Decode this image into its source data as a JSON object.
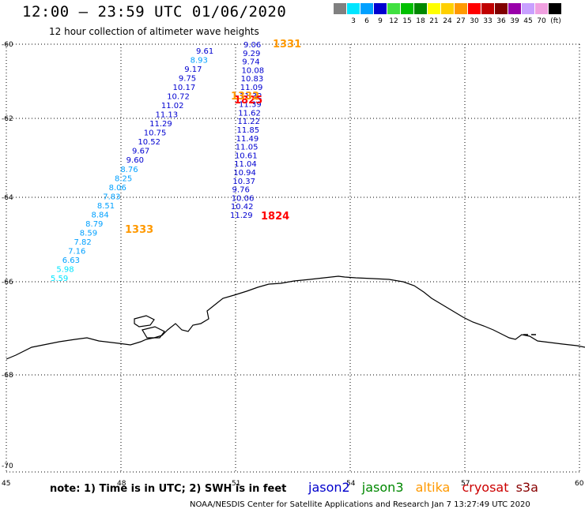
{
  "header": {
    "title": "12:00 – 23:59 UTC 01/06/2020",
    "subtitle": "12 hour collection of altimeter wave heights"
  },
  "color_scale": {
    "labels": [
      "3",
      "6",
      "9",
      "12",
      "15",
      "18",
      "21",
      "24",
      "27",
      "30",
      "33",
      "36",
      "39",
      "45",
      "70"
    ],
    "unit": "(ft)",
    "colors": [
      "#808080",
      "#00e5ff",
      "#00a0ff",
      "#0000d0",
      "#40e040",
      "#00c000",
      "#008800",
      "#ffff00",
      "#ffd000",
      "#ff9900",
      "#ff0000",
      "#c00000",
      "#800000",
      "#9900aa",
      "#c8a0ff",
      "#f0a0e0",
      "#000000"
    ]
  },
  "axes": {
    "lat_labels": [
      "-60",
      "-62",
      "-64",
      "-66",
      "-68",
      "-70"
    ],
    "lon_labels": [
      "45",
      "48",
      "51",
      "54",
      "57",
      "60"
    ]
  },
  "tracks": [
    {
      "satellite": "jason2",
      "time_labels": [
        {
          "text": "1331",
          "color": "#ff9900"
        },
        {
          "text": "1824",
          "color": "#ff0000"
        }
      ],
      "values": [
        "9.06",
        "9.29",
        "9.74",
        "10.08",
        "10.83",
        "11.09",
        "11.32",
        "11.39",
        "11.62",
        "11.22",
        "11.85",
        "11.49",
        "11.05",
        "10.61",
        "11.04",
        "10.94",
        "10.37",
        "9.76",
        "10.06",
        "10.42",
        "11.29"
      ]
    },
    {
      "satellite": "jason2",
      "time_labels": [
        {
          "text": "1825",
          "color": "#ff0000"
        },
        {
          "text": "1332",
          "color": "#ff9900"
        },
        {
          "text": "1333",
          "color": "#ff9900"
        }
      ],
      "values": [
        "9.61",
        "8.93",
        "9.17",
        "9.75",
        "10.17",
        "10.72",
        "11.02",
        "11.13",
        "11.29",
        "10.75",
        "10.52",
        "9.67",
        "9.60",
        "8.76",
        "8.25",
        "8.06",
        "7.83",
        "8.51",
        "8.84",
        "8.79",
        "8.59",
        "7.82",
        "7.16",
        "6.63",
        "5.98",
        "5.59"
      ]
    }
  ],
  "footer": {
    "note": "note: 1) Time is in UTC; 2) SWH is in feet",
    "satellites": [
      {
        "name": "jason2",
        "color": "#0000cc"
      },
      {
        "name": "jason3",
        "color": "#008800"
      },
      {
        "name": "altika",
        "color": "#ff9900"
      },
      {
        "name": "cryosat",
        "color": "#cc0000"
      },
      {
        "name": "s3a",
        "color": "#880000"
      }
    ],
    "credit": "NOAA/NESDIS Center for Satellite Applications and Research   Jan  7 13:27:49 UTC 2020"
  }
}
